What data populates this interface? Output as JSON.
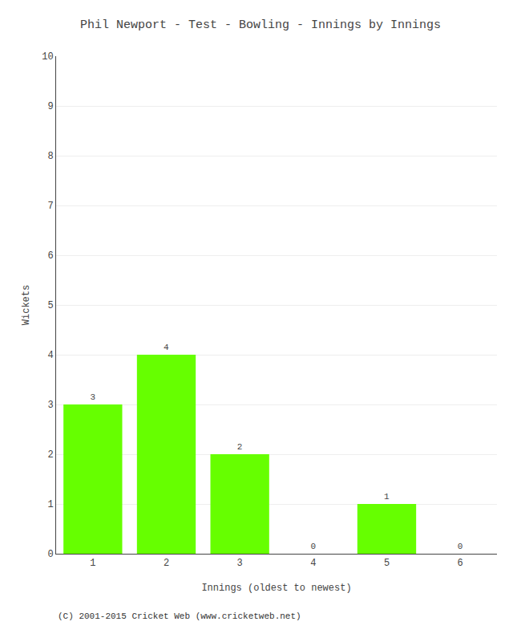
{
  "chart_data": {
    "type": "bar",
    "title": "Phil Newport - Test - Bowling - Innings by Innings",
    "xlabel": "Innings (oldest to newest)",
    "ylabel": "Wickets",
    "categories": [
      "1",
      "2",
      "3",
      "4",
      "5",
      "6"
    ],
    "values": [
      3,
      4,
      2,
      0,
      1,
      0
    ],
    "color": "#66ff00",
    "ylim": [
      0,
      10
    ],
    "yticks": [
      0,
      1,
      2,
      3,
      4,
      5,
      6,
      7,
      8,
      9,
      10
    ],
    "grid": true,
    "data_labels": true,
    "annotations": [
      "(C) 2001-2015 Cricket Web (www.cricketweb.net)"
    ]
  }
}
